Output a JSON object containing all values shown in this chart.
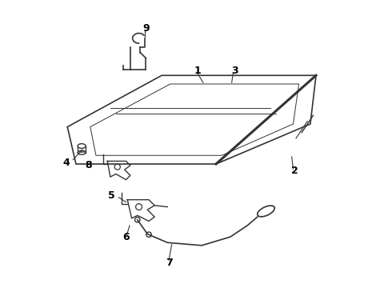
{
  "background_color": "#ffffff",
  "line_color": "#333333",
  "label_color": "#000000",
  "fig_width": 4.9,
  "fig_height": 3.6,
  "dpi": 100
}
